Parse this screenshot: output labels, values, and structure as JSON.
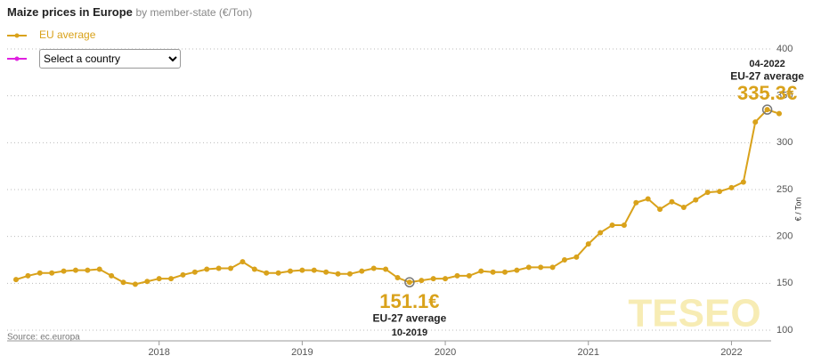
{
  "chart_data": {
    "type": "line",
    "title": "Maize prices in Europe",
    "subtitle": "by member-state (€/Ton)",
    "y_label": "€ / Ton",
    "source": "Source: ec.europa",
    "watermark": "TESEO",
    "x": [
      "01-2017",
      "02-2017",
      "03-2017",
      "04-2017",
      "05-2017",
      "06-2017",
      "07-2017",
      "08-2017",
      "09-2017",
      "10-2017",
      "11-2017",
      "12-2017",
      "01-2018",
      "02-2018",
      "03-2018",
      "04-2018",
      "05-2018",
      "06-2018",
      "07-2018",
      "08-2018",
      "09-2018",
      "10-2018",
      "11-2018",
      "12-2018",
      "01-2019",
      "02-2019",
      "03-2019",
      "04-2019",
      "05-2019",
      "06-2019",
      "07-2019",
      "08-2019",
      "09-2019",
      "10-2019",
      "11-2019",
      "12-2019",
      "01-2020",
      "02-2020",
      "03-2020",
      "04-2020",
      "05-2020",
      "06-2020",
      "07-2020",
      "08-2020",
      "09-2020",
      "10-2020",
      "11-2020",
      "12-2020",
      "01-2021",
      "02-2021",
      "03-2021",
      "04-2021",
      "05-2021",
      "06-2021",
      "07-2021",
      "08-2021",
      "09-2021",
      "10-2021",
      "11-2021",
      "12-2021",
      "01-2022",
      "02-2022",
      "03-2022",
      "04-2022",
      "05-2022"
    ],
    "series": [
      {
        "name": "EU average",
        "color": "#d9a21b",
        "values": [
          154,
          158,
          161,
          161,
          163,
          164,
          164,
          165,
          158,
          151,
          149,
          152,
          155,
          155,
          159,
          162,
          165,
          166,
          166,
          173,
          165,
          161,
          161,
          163,
          164,
          164,
          162,
          160,
          160,
          163,
          166,
          165,
          156,
          151.1,
          153,
          155,
          155,
          158,
          158,
          163,
          162,
          162,
          164,
          167,
          167,
          167,
          175,
          178,
          192,
          204,
          212,
          212,
          236,
          240,
          229,
          237,
          231,
          239,
          247,
          248,
          252,
          258,
          322,
          335.3,
          331
        ],
        "value_labels": [
          null,
          null,
          null,
          null,
          null,
          null,
          null,
          null,
          null,
          null,
          null,
          null,
          null,
          null,
          null,
          null,
          null,
          null,
          null,
          null,
          null,
          null,
          null,
          null,
          null,
          null,
          null,
          null,
          null,
          null,
          null,
          null,
          null,
          "151.1€",
          null,
          null,
          null,
          null,
          null,
          null,
          null,
          null,
          null,
          null,
          null,
          null,
          null,
          null,
          null,
          null,
          null,
          null,
          null,
          null,
          null,
          null,
          null,
          null,
          null,
          null,
          null,
          null,
          null,
          "335.3€",
          null
        ]
      }
    ],
    "annotations": [
      {
        "x": "04-2022",
        "text": "EU-27 average",
        "position": "above"
      },
      {
        "x": "10-2019",
        "text": "EU-27 average",
        "position": "below"
      }
    ],
    "xlim": [
      "01-2017",
      "05-2022"
    ],
    "xticks": [
      2018,
      2019,
      2020,
      2021,
      2022
    ],
    "ylim": [
      100,
      400
    ],
    "yticks": [
      100,
      150,
      200,
      250,
      300,
      350,
      400
    ],
    "grid": true
  },
  "controls": {
    "country_select": "Select a country"
  }
}
